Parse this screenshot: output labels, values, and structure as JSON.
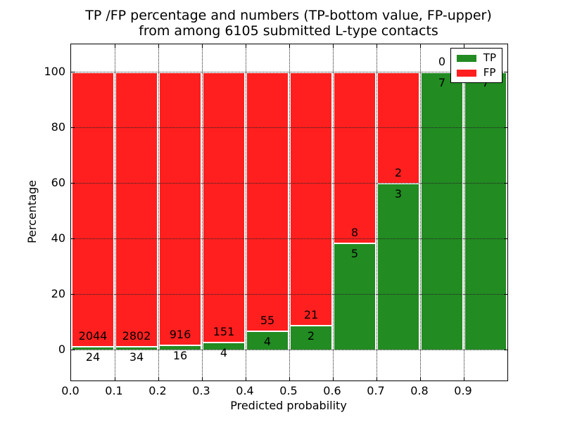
{
  "title": {
    "line1": "TP /FP percentage and numbers (TP-bottom value, FP-upper)",
    "line2": "from among 6105 submitted L-type contacts"
  },
  "axes": {
    "xlabel": "Predicted probability",
    "ylabel": "Percentage",
    "ytick_values": [
      0,
      20,
      40,
      60,
      80,
      100
    ],
    "ytick_labels": [
      "0",
      "20",
      "40",
      "60",
      "80",
      "100"
    ],
    "xtick_values": [
      0.0,
      0.1,
      0.2,
      0.3,
      0.4,
      0.5,
      0.6,
      0.7,
      0.8,
      0.9
    ],
    "xtick_labels": [
      "0.0",
      "0.1",
      "0.2",
      "0.3",
      "0.4",
      "0.5",
      "0.6",
      "0.7",
      "0.8",
      "0.9"
    ],
    "ylim": [
      -11,
      110
    ],
    "xlim": [
      0,
      1
    ],
    "grid_style": "dotted"
  },
  "legend": {
    "position": "upper-right",
    "entries": [
      {
        "label": "TP",
        "color": "#228B22"
      },
      {
        "label": "FP",
        "color": "#FF1F1F"
      }
    ]
  },
  "colors": {
    "tp": "#228B22",
    "fp": "#FF1F1F",
    "bar_edge": "#FFFFFF",
    "grid": "#222222",
    "frame": "#000000",
    "background": "#FFFFFF",
    "text": "#000000"
  },
  "chart_data": {
    "type": "bar",
    "stacked": true,
    "normalized": "each bin scaled so TP% + FP% = 100",
    "total_submitted": 6105,
    "bin_width": 0.1,
    "bin_starts": [
      0.0,
      0.1,
      0.2,
      0.3,
      0.4,
      0.5,
      0.6,
      0.7,
      0.8,
      0.9
    ],
    "series": [
      {
        "name": "TP",
        "color": "#228B22",
        "counts": [
          24,
          34,
          16,
          4,
          4,
          2,
          5,
          3,
          7,
          7
        ],
        "percent": [
          1.16,
          1.2,
          1.72,
          2.58,
          6.78,
          8.7,
          38.46,
          60.0,
          100.0,
          100.0
        ]
      },
      {
        "name": "FP",
        "color": "#FF1F1F",
        "counts": [
          2044,
          2802,
          916,
          151,
          55,
          21,
          8,
          2,
          0,
          0
        ],
        "percent": [
          98.84,
          98.8,
          98.28,
          97.42,
          93.22,
          91.3,
          61.54,
          40.0,
          0.0,
          0.0
        ]
      }
    ],
    "tp_value_labels": [
      "24",
      "34",
      "16",
      "4",
      "4",
      "2",
      "5",
      "3",
      "7",
      "7"
    ],
    "fp_value_labels": [
      "2044",
      "2802",
      "916",
      "151",
      "55",
      "21",
      "8",
      "2",
      "0",
      ""
    ],
    "xlabel": "Predicted probability",
    "ylabel": "Percentage",
    "title": "TP /FP percentage and numbers (TP-bottom value, FP-upper) from among 6105 submitted L-type contacts"
  }
}
